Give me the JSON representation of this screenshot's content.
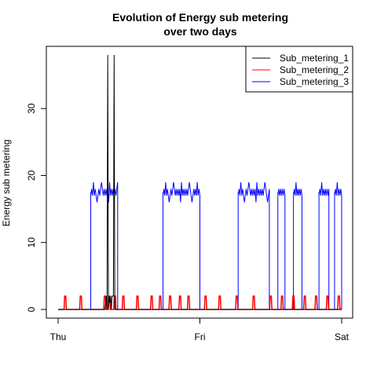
{
  "chart_data": {
    "type": "line",
    "title_line1": "Evolution of Energy sub metering",
    "title_line2": "over two days",
    "xlabel": "",
    "ylabel": "Energy sub metering",
    "xlim": [
      0,
      2
    ],
    "ylim": [
      0,
      38
    ],
    "x_ticks": [
      {
        "value": 0,
        "label": "Thu"
      },
      {
        "value": 1,
        "label": "Fri"
      },
      {
        "value": 2,
        "label": "Sat"
      }
    ],
    "y_ticks": [
      0,
      10,
      20,
      30
    ],
    "grid": false,
    "legend_position": "top-right",
    "x_unit": "days",
    "series": [
      {
        "name": "Sub_metering_1",
        "color": "#000000",
        "x": [
          0,
          0.33,
          0.34,
          0.345,
          0.35,
          0.355,
          0.36,
          0.365,
          0.37,
          0.375,
          0.38,
          0.39,
          0.395,
          0.4,
          0.4,
          2
        ],
        "y": [
          0,
          0,
          2,
          0,
          38,
          0,
          2,
          1,
          2,
          0,
          2,
          2,
          38,
          0,
          0,
          0
        ]
      },
      {
        "name": "Sub_metering_2",
        "color": "#ff0000",
        "x_peaks": [
          0.05,
          0.16,
          0.33,
          0.36,
          0.4,
          0.46,
          0.56,
          0.66,
          0.72,
          0.79,
          0.86,
          0.92,
          1.04,
          1.14,
          1.26,
          1.38,
          1.5,
          1.58,
          1.66,
          1.74,
          1.82,
          1.9,
          1.98
        ],
        "peak_value": 2,
        "base_value": 0
      },
      {
        "name": "Sub_metering_3",
        "color": "#0000ff",
        "segments": [
          {
            "x": [
              0.23,
              0.42
            ],
            "level": 17.5,
            "spikes": [
              19,
              16
            ]
          },
          {
            "x": [
              0.74,
              1.0
            ],
            "level": 17.5,
            "spikes": [
              19,
              16
            ]
          },
          {
            "x": [
              1.27,
              1.49
            ],
            "level": 17.5,
            "spikes": [
              19,
              16
            ]
          },
          {
            "x": [
              1.55,
              1.6
            ],
            "level": 17.5,
            "spikes": []
          },
          {
            "x": [
              1.66,
              1.72
            ],
            "level": 17.5,
            "spikes": [
              19
            ]
          },
          {
            "x": [
              1.84,
              1.91
            ],
            "level": 17.5,
            "spikes": [
              19
            ]
          },
          {
            "x": [
              1.95,
              2.0
            ],
            "level": 17.5,
            "spikes": [
              19
            ]
          }
        ],
        "base_value": 0
      }
    ]
  }
}
